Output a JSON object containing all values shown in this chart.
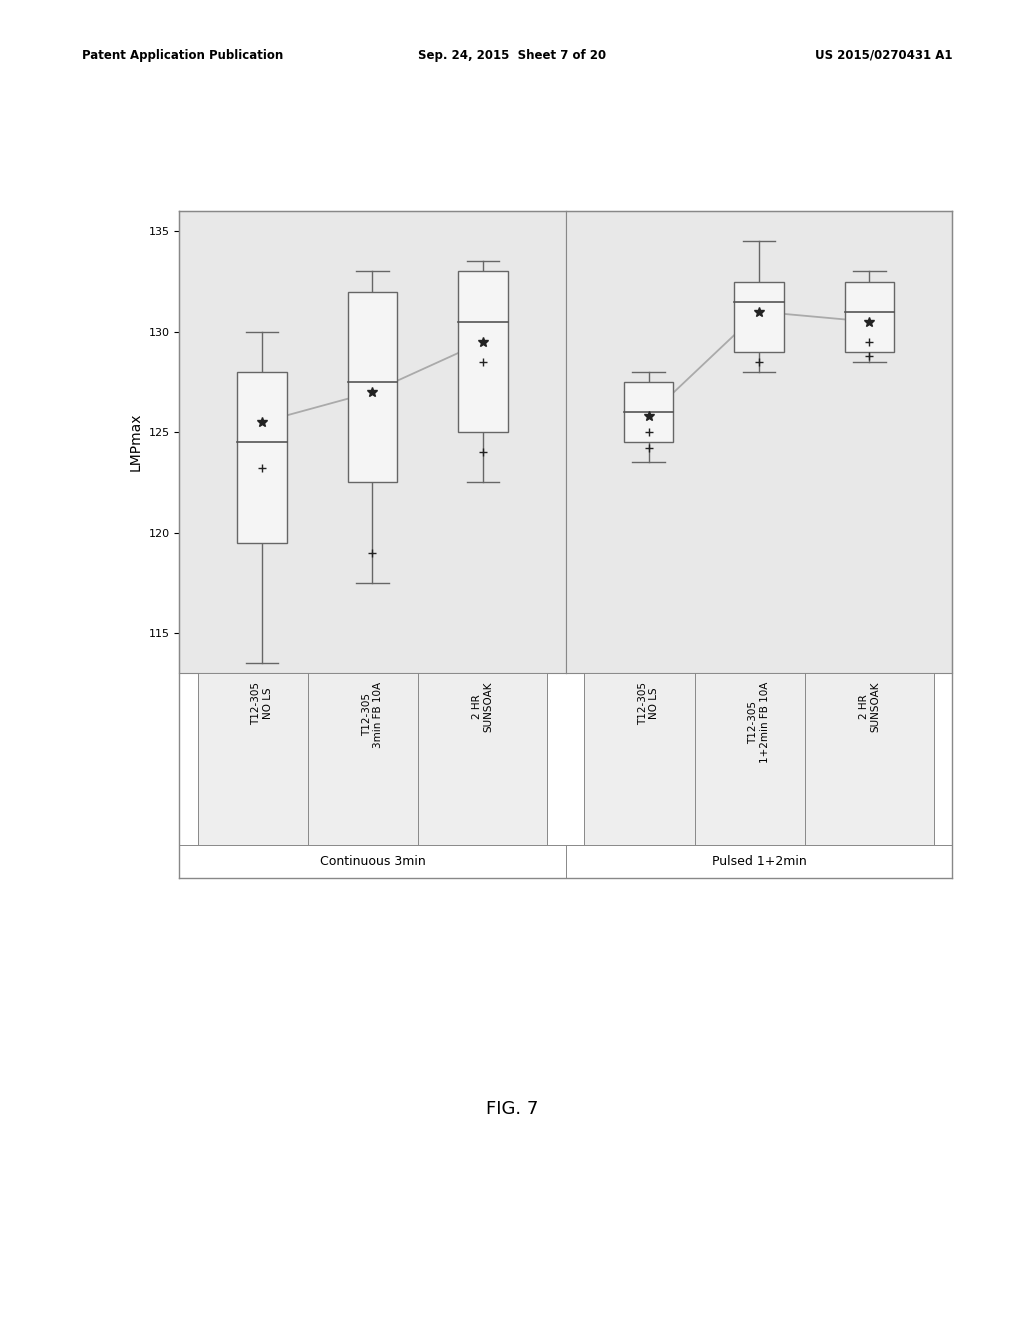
{
  "title": "FIG. 7",
  "ylabel": "LMPmax",
  "ylim": [
    113,
    136
  ],
  "yticks": [
    115,
    120,
    125,
    130,
    135
  ],
  "patent_header": {
    "left": "Patent Application Publication",
    "center": "Sep. 24, 2015  Sheet 7 of 20",
    "right": "US 2015/0270431 A1"
  },
  "groups": [
    {
      "name": "Continuous 3min",
      "boxes": [
        {
          "label": "T12-305\nNO LS",
          "whisker_low": 113.5,
          "q1": 119.5,
          "median": 124.5,
          "q3": 128.0,
          "whisker_high": 130.0,
          "mean": 125.5,
          "extras": [
            123.2
          ]
        },
        {
          "label": "T12-305\n3min FB 10A",
          "whisker_low": 117.5,
          "q1": 122.5,
          "median": 127.5,
          "q3": 132.0,
          "whisker_high": 133.0,
          "mean": 127.0,
          "extras": [
            119.0
          ]
        },
        {
          "label": "2 HR\nSUNSOAK",
          "whisker_low": 122.5,
          "q1": 125.0,
          "median": 130.5,
          "q3": 133.0,
          "whisker_high": 133.5,
          "mean": 129.5,
          "extras": [
            128.5,
            124.0
          ]
        }
      ],
      "means_line": [
        125.5,
        127.0,
        129.5
      ]
    },
    {
      "name": "Pulsed 1+2min",
      "boxes": [
        {
          "label": "T12-305\nNO LS",
          "whisker_low": 123.5,
          "q1": 124.5,
          "median": 126.0,
          "q3": 127.5,
          "whisker_high": 128.0,
          "mean": 125.8,
          "extras": [
            124.2,
            125.0
          ]
        },
        {
          "label": "T12-305\n1+2min FB 10A",
          "whisker_low": 128.0,
          "q1": 129.0,
          "median": 131.5,
          "q3": 132.5,
          "whisker_high": 134.5,
          "mean": 131.0,
          "extras": [
            128.5
          ]
        },
        {
          "label": "2 HR\nSUNSOAK",
          "whisker_low": 128.5,
          "q1": 129.0,
          "median": 131.0,
          "q3": 132.5,
          "whisker_high": 133.0,
          "mean": 130.5,
          "extras": [
            128.8,
            129.5
          ]
        }
      ],
      "means_line": [
        125.8,
        131.0,
        130.5
      ]
    }
  ],
  "box_width": 0.45,
  "box_facecolor": "#f5f5f5",
  "box_edgecolor": "#666666",
  "whisker_color": "#666666",
  "median_color": "#555555",
  "mean_color": "#222222",
  "line_color": "#aaaaaa",
  "background_color": "white",
  "plot_bg_color": "#e8e8e8",
  "cell_bg_color": "#eeeeee",
  "border_color": "#888888",
  "header_fontsize": 8.5,
  "ylabel_fontsize": 10,
  "tick_fontsize": 8,
  "label_fontsize": 7.5,
  "group_label_fontsize": 9,
  "title_fontsize": 13
}
